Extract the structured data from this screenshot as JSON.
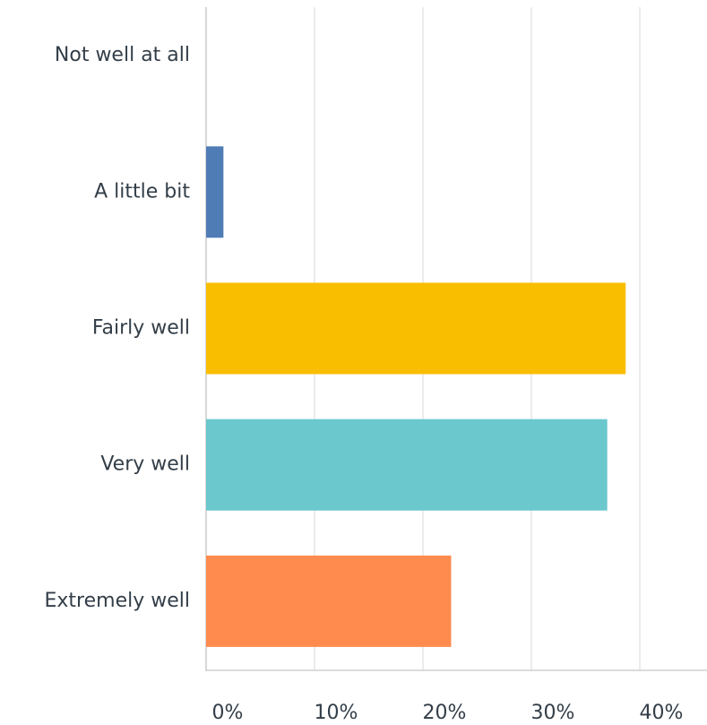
{
  "chart_data": {
    "type": "hbar",
    "categories": [
      "Not well at all",
      "A little bit",
      "Fairly well",
      "Very well",
      "Extremely well"
    ],
    "values": [
      0,
      1.6,
      38.7,
      37.0,
      22.6
    ],
    "colors": [
      "#507cb6",
      "#507cb6",
      "#f9be00",
      "#6bc8cd",
      "#ff8b4f"
    ],
    "xlim": [
      0,
      46.2
    ],
    "xticks": [
      {
        "value": 0,
        "label": "0%"
      },
      {
        "value": 10,
        "label": "10%"
      },
      {
        "value": 20,
        "label": "20%"
      },
      {
        "value": 30,
        "label": "30%"
      },
      {
        "value": 40,
        "label": "40%"
      }
    ],
    "grid": true
  }
}
